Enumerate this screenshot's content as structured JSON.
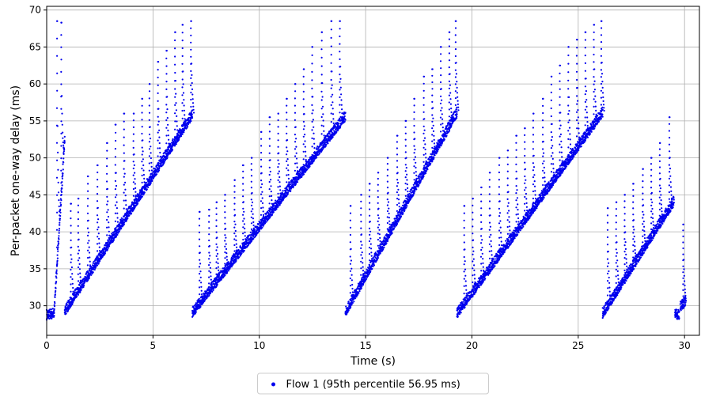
{
  "chart_data": {
    "type": "scatter",
    "xlabel": "Time (s)",
    "ylabel": "Per-packet one-way delay (ms)",
    "xlim": [
      0,
      30.7
    ],
    "ylim": [
      26,
      70.5
    ],
    "x_ticks": [
      0,
      5,
      10,
      15,
      20,
      25,
      30
    ],
    "y_ticks": [
      30,
      35,
      40,
      45,
      50,
      55,
      60,
      65,
      70
    ],
    "grid": true,
    "legend_position": "bottom-center",
    "series": [
      {
        "name": "Flow 1 (95th percentile 56.95 ms)",
        "color": "#0000ee",
        "marker": "dot",
        "cycles": [
          {
            "start": 0.0,
            "end": 0.35,
            "base_start": 28.1,
            "base_end": 28.3,
            "spikes": []
          },
          {
            "start": 0.35,
            "end": 0.85,
            "base_start": 28.5,
            "base_end": 52.0,
            "spikes": [
              [
                0.5,
                68.5
              ],
              [
                0.7,
                68.3
              ]
            ]
          },
          {
            "start": 0.85,
            "end": 6.85,
            "base_start": 28.6,
            "base_end": 55.2,
            "spikes": [
              [
                1.15,
                43.8
              ],
              [
                1.5,
                44.5
              ],
              [
                1.95,
                47.5
              ],
              [
                2.4,
                49.0
              ],
              [
                2.85,
                52.0
              ],
              [
                3.25,
                54.5
              ],
              [
                3.65,
                56.0
              ],
              [
                4.1,
                56.0
              ],
              [
                4.5,
                58.0
              ],
              [
                4.85,
                60.0
              ],
              [
                5.25,
                63.0
              ],
              [
                5.65,
                64.5
              ],
              [
                6.05,
                67.0
              ],
              [
                6.4,
                68.0
              ],
              [
                6.8,
                68.5
              ]
            ]
          },
          {
            "start": 6.85,
            "end": 14.05,
            "base_start": 28.4,
            "base_end": 55.0,
            "spikes": [
              [
                7.2,
                42.7
              ],
              [
                7.65,
                43.0
              ],
              [
                8.0,
                44.0
              ],
              [
                8.4,
                45.0
              ],
              [
                8.85,
                47.0
              ],
              [
                9.25,
                49.0
              ],
              [
                9.65,
                50.0
              ],
              [
                10.1,
                53.5
              ],
              [
                10.5,
                55.5
              ],
              [
                10.9,
                56.0
              ],
              [
                11.3,
                58.0
              ],
              [
                11.7,
                60.0
              ],
              [
                12.1,
                62.0
              ],
              [
                12.5,
                65.0
              ],
              [
                12.95,
                67.0
              ],
              [
                13.4,
                68.5
              ],
              [
                13.8,
                68.5
              ]
            ]
          },
          {
            "start": 14.05,
            "end": 19.3,
            "base_start": 28.5,
            "base_end": 55.5,
            "spikes": [
              [
                14.3,
                43.5
              ],
              [
                14.8,
                45.0
              ],
              [
                15.2,
                46.5
              ],
              [
                15.6,
                48.0
              ],
              [
                16.05,
                50.0
              ],
              [
                16.5,
                53.0
              ],
              [
                16.9,
                55.0
              ],
              [
                17.3,
                58.0
              ],
              [
                17.75,
                61.0
              ],
              [
                18.15,
                62.0
              ],
              [
                18.55,
                65.0
              ],
              [
                18.95,
                67.0
              ],
              [
                19.25,
                68.5
              ]
            ]
          },
          {
            "start": 19.3,
            "end": 26.15,
            "base_start": 28.3,
            "base_end": 55.5,
            "spikes": [
              [
                19.65,
                43.5
              ],
              [
                20.05,
                44.5
              ],
              [
                20.45,
                46.0
              ],
              [
                20.85,
                48.0
              ],
              [
                21.3,
                50.0
              ],
              [
                21.7,
                51.0
              ],
              [
                22.1,
                53.0
              ],
              [
                22.5,
                54.0
              ],
              [
                22.9,
                56.0
              ],
              [
                23.35,
                58.0
              ],
              [
                23.75,
                61.0
              ],
              [
                24.15,
                62.5
              ],
              [
                24.55,
                65.0
              ],
              [
                24.95,
                66.0
              ],
              [
                25.35,
                67.0
              ],
              [
                25.75,
                68.0
              ],
              [
                26.1,
                68.5
              ]
            ]
          },
          {
            "start": 26.15,
            "end": 29.5,
            "base_start": 28.3,
            "base_end": 43.5,
            "spikes": [
              [
                26.4,
                43.2
              ],
              [
                26.8,
                44.0
              ],
              [
                27.2,
                45.0
              ],
              [
                27.6,
                46.5
              ],
              [
                28.05,
                48.5
              ],
              [
                28.45,
                50.0
              ],
              [
                28.85,
                52.0
              ],
              [
                29.3,
                55.5
              ]
            ]
          },
          {
            "start": 29.55,
            "end": 29.75,
            "base_start": 28.2,
            "base_end": 28.2,
            "spikes": []
          },
          {
            "start": 29.8,
            "end": 30.05,
            "base_start": 29.2,
            "base_end": 30.0,
            "spikes": [
              [
                29.95,
                41.0
              ]
            ]
          }
        ]
      }
    ]
  }
}
